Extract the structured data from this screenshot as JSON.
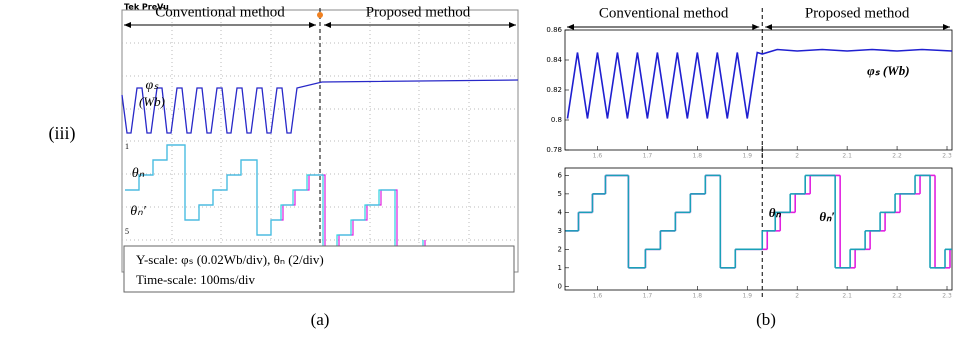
{
  "row_label": "(iii)",
  "panel_a": {
    "scope_label": "Tek PreVu",
    "left_title": "Conventional method",
    "right_title": "Proposed method",
    "phi_label": "φₛ",
    "phi_unit": "(Wb)",
    "theta_label": "θₙ",
    "theta_prime_label": "θₙ′",
    "channel_1": "1",
    "channel_5": "5",
    "y_scale": "Y-scale:  φₛ (0.02Wb/div), θₙ (2/div)",
    "time_scale": "Time-scale: 100ms/div",
    "caption": "(a)"
  },
  "panel_b_caption": "(b)",
  "chart_data": [
    {
      "type": "line",
      "left_title": "Conventional method",
      "right_title": "Proposed method",
      "x": [
        1.54,
        1.56,
        1.58,
        1.6,
        1.62,
        1.64,
        1.66,
        1.68,
        1.7,
        1.72,
        1.74,
        1.76,
        1.78,
        1.8,
        1.82,
        1.84,
        1.86,
        1.88,
        1.9,
        1.92,
        1.93,
        1.96,
        2.0,
        2.05,
        2.1,
        2.15,
        2.2,
        2.25,
        2.31
      ],
      "series": [
        {
          "name": "φₛ (Wb)",
          "color": "#1f1fd0",
          "values": [
            0.801,
            0.845,
            0.801,
            0.845,
            0.801,
            0.845,
            0.801,
            0.845,
            0.801,
            0.845,
            0.801,
            0.845,
            0.801,
            0.845,
            0.801,
            0.845,
            0.801,
            0.845,
            0.801,
            0.845,
            0.844,
            0.847,
            0.846,
            0.847,
            0.846,
            0.847,
            0.846,
            0.847,
            0.846
          ]
        }
      ],
      "xlim": [
        1.535,
        2.31
      ],
      "xticks": [
        1.6,
        1.7,
        1.8,
        1.9,
        2,
        2.1,
        2.2,
        2.3
      ],
      "ylim": [
        0.78,
        0.86
      ],
      "yticks": [
        0.78,
        0.8,
        0.82,
        0.84,
        0.86
      ],
      "divider": 1.93
    },
    {
      "type": "step",
      "series": [
        {
          "name": "θₙ′",
          "color": "#e020e0",
          "x": [
            1.536,
            1.562,
            1.59,
            1.616,
            1.662,
            1.696,
            1.726,
            1.756,
            1.786,
            1.816,
            1.846,
            1.876,
            1.94,
            1.966,
            1.996,
            2.026,
            2.086,
            2.116,
            2.146,
            2.176,
            2.206,
            2.246,
            2.276,
            2.306
          ],
          "values": [
            3,
            4,
            5,
            6,
            1,
            2,
            3,
            4,
            5,
            6,
            1,
            2,
            3,
            4,
            5,
            6,
            1,
            2,
            3,
            4,
            5,
            6,
            1,
            2
          ]
        },
        {
          "name": "θₙ",
          "color": "#1aa0b8",
          "x": [
            1.536,
            1.562,
            1.59,
            1.616,
            1.662,
            1.696,
            1.726,
            1.756,
            1.786,
            1.816,
            1.846,
            1.876,
            1.93,
            1.956,
            1.986,
            2.016,
            2.076,
            2.106,
            2.136,
            2.166,
            2.196,
            2.236,
            2.266,
            2.296
          ],
          "values": [
            3,
            4,
            5,
            6,
            1,
            2,
            3,
            4,
            5,
            6,
            1,
            2,
            3,
            4,
            5,
            6,
            1,
            2,
            3,
            4,
            5,
            6,
            1,
            2
          ]
        }
      ],
      "xlim": [
        1.535,
        2.31
      ],
      "xticks": [
        1.6,
        1.7,
        1.8,
        1.9,
        2,
        2.1,
        2.2,
        2.3
      ],
      "ylim": [
        -0.2,
        6.4
      ],
      "yticks": [
        0,
        1,
        2,
        3,
        4,
        5,
        6
      ],
      "divider": 1.93
    }
  ]
}
